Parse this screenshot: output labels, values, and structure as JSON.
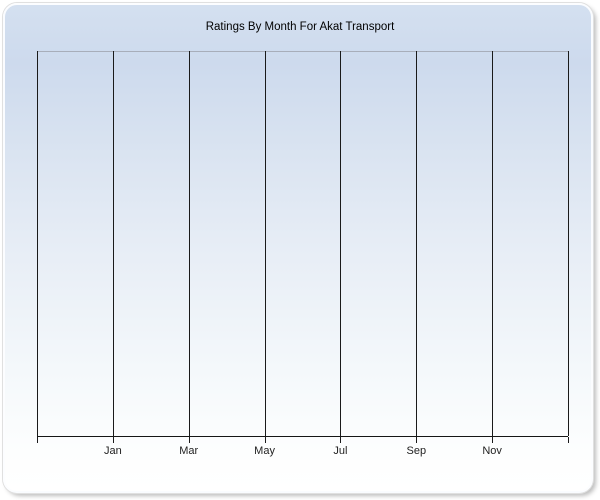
{
  "chart": {
    "title": "Ratings By Month For Akat Transport",
    "x_tick_labels": [
      "Jan",
      "Mar",
      "May",
      "Jul",
      "Sep",
      "Nov"
    ]
  },
  "chart_data": {
    "type": "line",
    "title": "Ratings By Month For Akat Transport",
    "categories": [
      "Jan",
      "Mar",
      "May",
      "Jul",
      "Sep",
      "Nov"
    ],
    "series": [],
    "xlabel": "",
    "ylabel": "",
    "grid": "vertical",
    "gridline_count": 8,
    "legend": "none",
    "plot_state": "empty"
  },
  "colors": {
    "panel_top": "#d4e0f0",
    "panel_bottom": "#ffffff",
    "plot_top_border": "#a8aeba",
    "axis_line": "#161616",
    "gridline": "#1a1a1a",
    "tick_label": "#222222",
    "title_text": "#000000"
  }
}
